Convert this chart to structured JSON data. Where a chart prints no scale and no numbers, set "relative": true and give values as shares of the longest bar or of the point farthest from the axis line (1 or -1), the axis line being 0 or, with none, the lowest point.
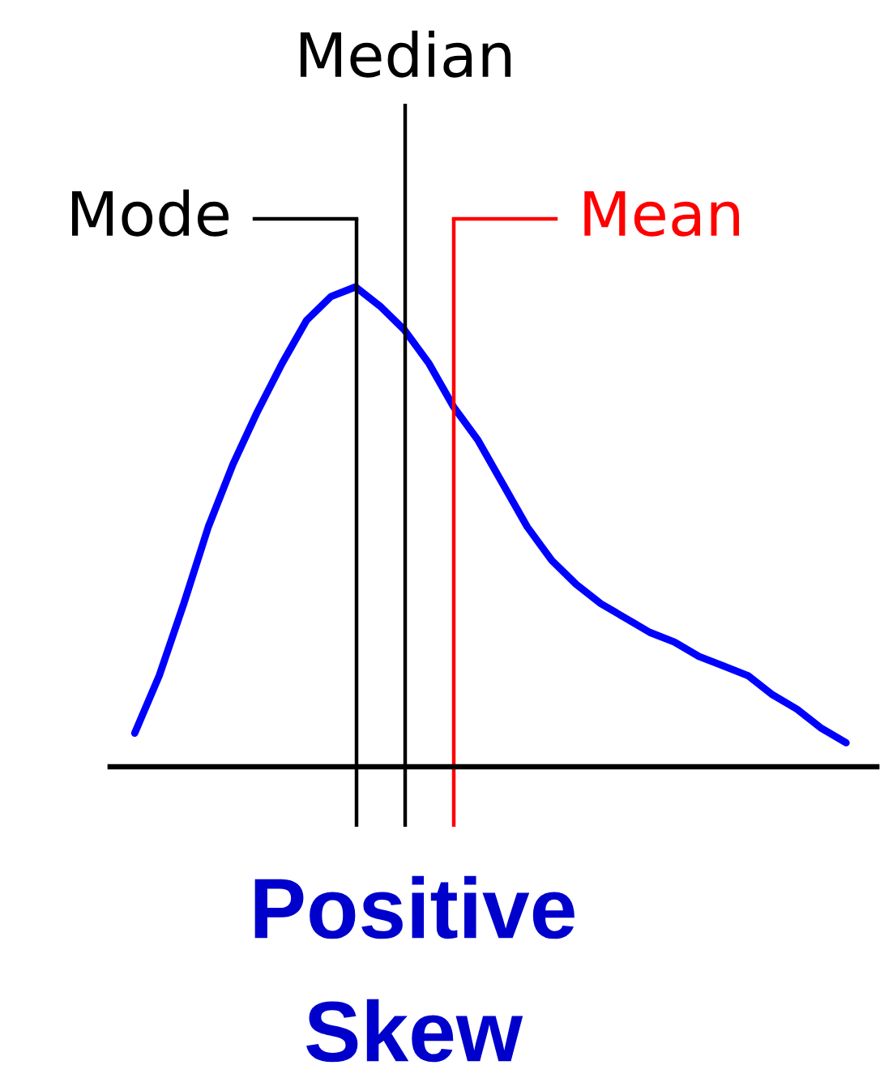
{
  "chart_data": {
    "type": "line",
    "title": "Positive Skew",
    "relative": true,
    "categories": [
      null,
      null,
      null,
      null,
      null,
      null,
      null,
      null,
      null,
      null,
      null,
      null,
      null,
      null,
      null,
      null,
      null,
      null,
      null,
      null,
      null,
      null,
      null,
      null,
      null,
      null,
      null,
      null,
      null,
      null
    ],
    "series": [
      {
        "color": "#0000ff",
        "values": [
          0.07,
          0.19,
          0.34,
          0.5,
          0.63,
          0.74,
          0.84,
          0.93,
          0.98,
          1.0,
          0.96,
          0.91,
          0.84,
          0.75,
          0.68,
          0.59,
          0.5,
          0.43,
          0.38,
          0.34,
          0.31,
          0.28,
          0.26,
          0.23,
          0.21,
          0.19,
          0.15,
          0.12,
          0.08,
          0.05
        ]
      }
    ],
    "annotations": [
      "Mode",
      "Median",
      "Mean"
    ]
  }
}
